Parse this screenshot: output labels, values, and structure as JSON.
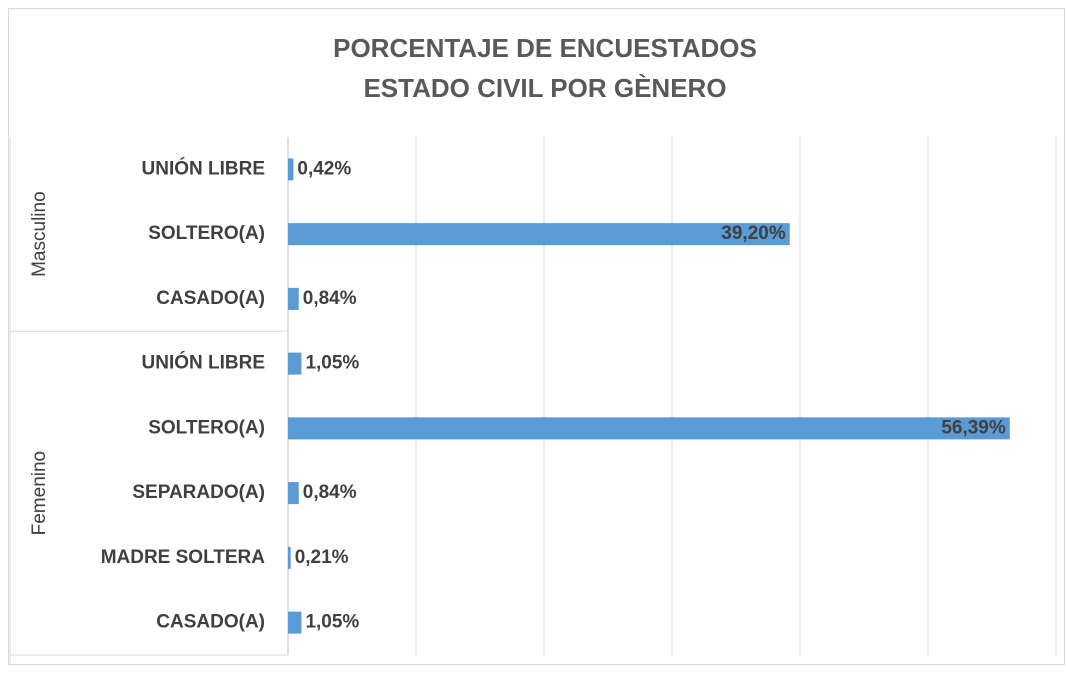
{
  "chart_data": {
    "type": "bar",
    "orientation": "horizontal",
    "title": "PORCENTAJE DE ENCUESTADOS",
    "subtitle": "ESTADO CIVIL POR GÈNERO",
    "color": "#5b9bd5",
    "xlim": [
      0,
      60
    ],
    "xticks": [
      0,
      10,
      20,
      30,
      40,
      50,
      60
    ],
    "grid": true,
    "groups": [
      {
        "name": "Masculino",
        "categories": [
          "UNIÓN LIBRE",
          "SOLTERO(A)",
          "CASADO(A)"
        ],
        "values": [
          0.42,
          39.2,
          0.84
        ],
        "value_labels": [
          "0,42%",
          "39,20%",
          "0,84%"
        ]
      },
      {
        "name": "Femenino",
        "categories": [
          "UNIÓN LIBRE",
          "SOLTERO(A)",
          "SEPARADO(A)",
          "MADRE SOLTERA",
          "CASADO(A)"
        ],
        "values": [
          1.05,
          56.39,
          0.84,
          0.21,
          1.05
        ],
        "value_labels": [
          "1,05%",
          "56,39%",
          "0,84%",
          "0,21%",
          "1,05%"
        ]
      }
    ]
  }
}
